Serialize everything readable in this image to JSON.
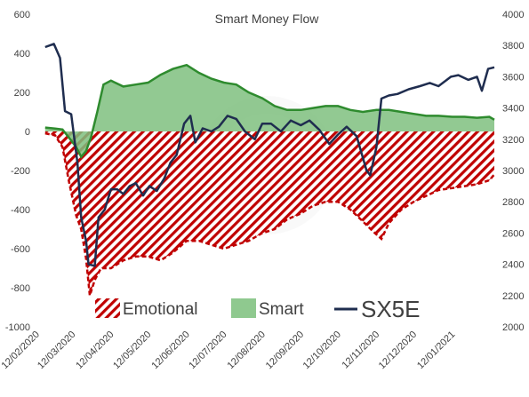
{
  "chart_data": {
    "type": "area",
    "title": "Smart Money Flow",
    "xlabel": "",
    "ylabel": "",
    "y2label": "",
    "x_range": [
      "2020-02-10",
      "2021-02-08"
    ],
    "ylim": [
      -1000,
      600
    ],
    "y2lim": [
      2000,
      4000
    ],
    "x_tick_labels": [
      "12/02/2020",
      "12/03/2020",
      "12/04/2020",
      "12/05/2020",
      "12/06/2020",
      "12/07/2020",
      "12/08/2020",
      "12/09/2020",
      "12/10/2020",
      "12/11/2020",
      "12/12/2020",
      "12/01/2021"
    ],
    "x_tick_dates": [
      "2020-02-12",
      "2020-03-12",
      "2020-04-12",
      "2020-05-12",
      "2020-06-12",
      "2020-07-12",
      "2020-08-12",
      "2020-09-12",
      "2020-10-12",
      "2020-11-12",
      "2020-12-12",
      "2021-01-12"
    ],
    "y_tick_labels": [
      "600",
      "400",
      "200",
      "0",
      "-200",
      "-400",
      "-600",
      "-800",
      "-1000"
    ],
    "y_tick_values": [
      600,
      400,
      200,
      0,
      -200,
      -400,
      -600,
      -800,
      -1000
    ],
    "y2_tick_labels": [
      "4000",
      "3800",
      "3600",
      "3400",
      "3200",
      "3000",
      "2800",
      "2600",
      "2400",
      "2200",
      "2000"
    ],
    "y2_tick_values": [
      4000,
      3800,
      3600,
      3400,
      3200,
      3000,
      2800,
      2600,
      2400,
      2200,
      2000
    ],
    "grid": false,
    "legend_position": "bottom",
    "series": [
      {
        "name": "Emotional",
        "axis": "left",
        "style": "hatched-area",
        "color": "#c00000",
        "x": [
          "2020-02-12",
          "2020-02-20",
          "2020-02-26",
          "2020-03-02",
          "2020-03-08",
          "2020-03-12",
          "2020-03-16",
          "2020-03-19",
          "2020-03-23",
          "2020-03-28",
          "2020-04-05",
          "2020-04-15",
          "2020-04-25",
          "2020-05-05",
          "2020-05-15",
          "2020-05-25",
          "2020-06-05",
          "2020-06-15",
          "2020-06-25",
          "2020-07-05",
          "2020-07-15",
          "2020-07-25",
          "2020-08-05",
          "2020-08-15",
          "2020-08-25",
          "2020-09-05",
          "2020-09-15",
          "2020-09-25",
          "2020-10-05",
          "2020-10-15",
          "2020-10-25",
          "2020-11-02",
          "2020-11-09",
          "2020-11-15",
          "2020-11-25",
          "2020-12-05",
          "2020-12-15",
          "2020-12-25",
          "2021-01-05",
          "2021-01-15",
          "2021-01-25",
          "2021-02-04",
          "2021-02-08"
        ],
        "values": [
          -10,
          -20,
          -80,
          -250,
          -430,
          -500,
          -650,
          -840,
          -760,
          -700,
          -700,
          -660,
          -640,
          -640,
          -660,
          -620,
          -560,
          -560,
          -580,
          -600,
          -580,
          -560,
          -520,
          -500,
          -450,
          -420,
          -380,
          -360,
          -360,
          -400,
          -460,
          -510,
          -550,
          -470,
          -400,
          -360,
          -330,
          -300,
          -290,
          -280,
          -270,
          -250,
          -220
        ]
      },
      {
        "name": "Smart",
        "axis": "left",
        "style": "area",
        "color": "#7fbf7f",
        "line_color": "#2e8b2e",
        "x": [
          "2020-02-12",
          "2020-02-20",
          "2020-02-26",
          "2020-03-02",
          "2020-03-08",
          "2020-03-12",
          "2020-03-16",
          "2020-03-20",
          "2020-03-25",
          "2020-03-30",
          "2020-04-05",
          "2020-04-15",
          "2020-04-25",
          "2020-05-05",
          "2020-05-15",
          "2020-05-25",
          "2020-06-05",
          "2020-06-15",
          "2020-06-25",
          "2020-07-05",
          "2020-07-15",
          "2020-07-25",
          "2020-08-05",
          "2020-08-15",
          "2020-08-25",
          "2020-09-05",
          "2020-09-15",
          "2020-09-25",
          "2020-10-05",
          "2020-10-15",
          "2020-10-25",
          "2020-11-05",
          "2020-11-15",
          "2020-11-25",
          "2020-12-05",
          "2020-12-15",
          "2020-12-25",
          "2021-01-05",
          "2021-01-15",
          "2021-01-25",
          "2021-02-04",
          "2021-02-08"
        ],
        "values": [
          20,
          15,
          10,
          -30,
          -80,
          -130,
          -100,
          -30,
          100,
          240,
          260,
          230,
          240,
          250,
          290,
          320,
          340,
          300,
          270,
          250,
          240,
          200,
          170,
          130,
          110,
          110,
          120,
          130,
          130,
          110,
          100,
          110,
          110,
          100,
          90,
          80,
          80,
          75,
          75,
          70,
          75,
          60
        ]
      },
      {
        "name": "SX5E",
        "axis": "right",
        "style": "line",
        "color": "#1f2d4f",
        "x": [
          "2020-02-12",
          "2020-02-19",
          "2020-02-24",
          "2020-02-28",
          "2020-03-04",
          "2020-03-09",
          "2020-03-12",
          "2020-03-16",
          "2020-03-18",
          "2020-03-23",
          "2020-03-26",
          "2020-03-31",
          "2020-04-05",
          "2020-04-10",
          "2020-04-15",
          "2020-04-20",
          "2020-04-25",
          "2020-05-01",
          "2020-05-06",
          "2020-05-12",
          "2020-05-18",
          "2020-05-23",
          "2020-05-28",
          "2020-06-03",
          "2020-06-08",
          "2020-06-12",
          "2020-06-18",
          "2020-06-25",
          "2020-07-01",
          "2020-07-08",
          "2020-07-15",
          "2020-07-22",
          "2020-07-30",
          "2020-08-05",
          "2020-08-12",
          "2020-08-20",
          "2020-08-28",
          "2020-09-05",
          "2020-09-12",
          "2020-09-20",
          "2020-09-28",
          "2020-10-05",
          "2020-10-12",
          "2020-10-20",
          "2020-10-28",
          "2020-10-31",
          "2020-11-05",
          "2020-11-09",
          "2020-11-15",
          "2020-11-22",
          "2020-12-01",
          "2020-12-10",
          "2020-12-18",
          "2020-12-25",
          "2021-01-04",
          "2021-01-10",
          "2021-01-18",
          "2021-01-25",
          "2021-01-29",
          "2021-02-03",
          "2021-02-08"
        ],
        "values": [
          3790,
          3810,
          3720,
          3380,
          3360,
          3050,
          2700,
          2550,
          2400,
          2390,
          2700,
          2750,
          2880,
          2880,
          2850,
          2900,
          2920,
          2840,
          2900,
          2870,
          2950,
          3050,
          3100,
          3300,
          3350,
          3180,
          3270,
          3250,
          3280,
          3350,
          3330,
          3250,
          3200,
          3300,
          3300,
          3250,
          3320,
          3290,
          3320,
          3260,
          3170,
          3230,
          3280,
          3220,
          3000,
          2970,
          3150,
          3460,
          3480,
          3490,
          3520,
          3540,
          3560,
          3540,
          3600,
          3610,
          3580,
          3600,
          3510,
          3650,
          3660
        ]
      }
    ]
  }
}
